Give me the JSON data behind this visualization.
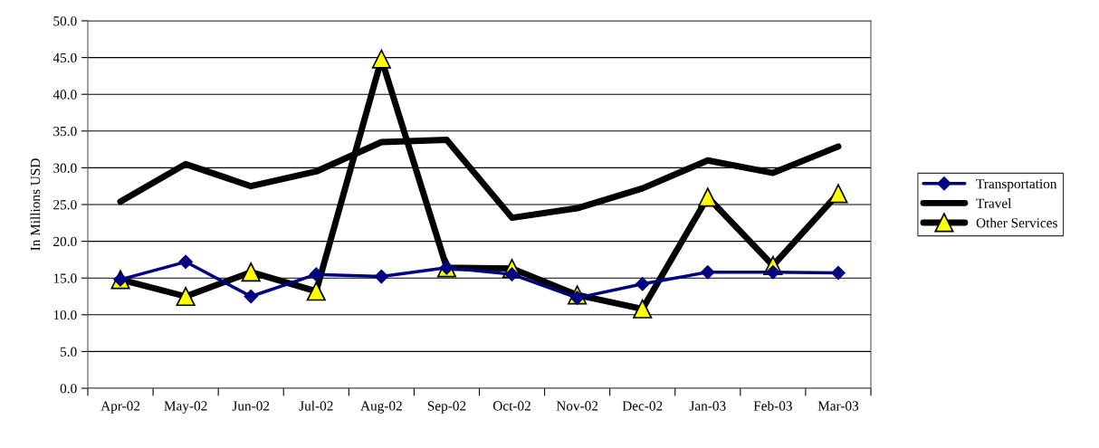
{
  "chart_data": {
    "type": "line",
    "ylabel": "In Millions USD",
    "categories": [
      "Apr-02",
      "May-02",
      "Jun-02",
      "Jul-02",
      "Aug-02",
      "Sep-02",
      "Oct-02",
      "Nov-02",
      "Dec-02",
      "Jan-03",
      "Feb-03",
      "Mar-03"
    ],
    "series": [
      {
        "name": "Transportation",
        "color": "#000080",
        "marker": "diamond",
        "values": [
          14.8,
          17.2,
          12.5,
          15.5,
          15.2,
          16.4,
          15.5,
          12.3,
          14.2,
          15.8,
          15.8,
          15.7
        ]
      },
      {
        "name": "Travel",
        "color": "#000000",
        "marker": "none",
        "values": [
          25.4,
          30.5,
          27.5,
          29.5,
          33.5,
          33.8,
          23.2,
          24.5,
          27.2,
          31.0,
          29.3,
          32.9
        ]
      },
      {
        "name": "Other Services",
        "color": "#000000",
        "marker": "triangle",
        "values": [
          14.8,
          12.5,
          15.8,
          13.2,
          44.8,
          16.4,
          16.3,
          12.7,
          10.8,
          26.0,
          16.7,
          26.5
        ]
      }
    ],
    "ylim": [
      0,
      50
    ],
    "yticks": [
      {
        "value": 0,
        "label": "0.0"
      },
      {
        "value": 5,
        "label": "5.0"
      },
      {
        "value": 10,
        "label": "10.0"
      },
      {
        "value": 15,
        "label": "15.0"
      },
      {
        "value": 20,
        "label": "20.0"
      },
      {
        "value": 25,
        "label": "25.0"
      },
      {
        "value": 30,
        "label": "30.0"
      },
      {
        "value": 35,
        "label": "35.0"
      },
      {
        "value": 40,
        "label": "40.0"
      },
      {
        "value": 45,
        "label": "45.0"
      },
      {
        "value": 50,
        "label": "50.0"
      }
    ],
    "grid": "y",
    "legend": "right"
  }
}
